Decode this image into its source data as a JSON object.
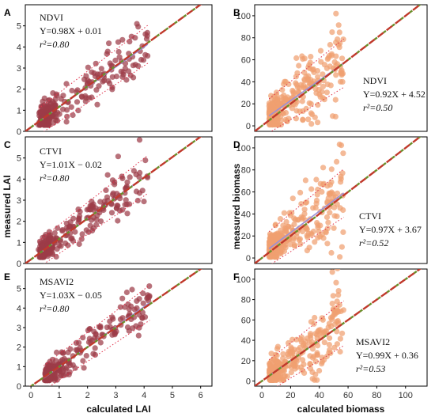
{
  "chart_data": [
    {
      "panel": "A",
      "type": "scatter",
      "annotation": {
        "index": "NDVI",
        "equation": "Y=0.98X + 0.01",
        "r2": "r²=0.80"
      },
      "xlim": [
        0,
        6.4
      ],
      "ylim": [
        0,
        6.0
      ],
      "xticks": [],
      "yticks": [
        "0",
        "1",
        "2",
        "3",
        "4",
        "5"
      ],
      "fit": {
        "slope": 0.98,
        "intercept": 0.01
      },
      "scatter_model": {
        "n": 260,
        "x_range": [
          0.45,
          4.2
        ],
        "seed": 11
      }
    },
    {
      "panel": "B",
      "type": "scatter",
      "annotation": {
        "index": "NDVI",
        "equation": "Y=0.92X + 4.52",
        "r2": "r²=0.50"
      },
      "xlim": [
        -5,
        115
      ],
      "ylim": [
        -5,
        110
      ],
      "xticks": [],
      "yticks": [
        "0",
        "20",
        "40",
        "60",
        "80",
        "100"
      ],
      "fit": {
        "slope": 0.92,
        "intercept": 4.52
      },
      "scatter_model": {
        "n": 300,
        "x_range": [
          5,
          57
        ],
        "seed": 23
      }
    },
    {
      "panel": "C",
      "type": "scatter",
      "annotation": {
        "index": "CTVI",
        "equation": "Y=1.01X − 0.02",
        "r2": "r²=0.80"
      },
      "xlim": [
        0,
        6.4
      ],
      "ylim": [
        0,
        6.0
      ],
      "xticks": [],
      "yticks": [
        "0",
        "1",
        "2",
        "3",
        "4",
        "5"
      ],
      "ylabel": "measured LAI",
      "fit": {
        "slope": 1.01,
        "intercept": -0.02
      },
      "scatter_model": {
        "n": 260,
        "x_range": [
          0.45,
          4.2
        ],
        "seed": 37
      }
    },
    {
      "panel": "D",
      "type": "scatter",
      "annotation": {
        "index": "CTVI",
        "equation": "Y=0.97X + 3.67",
        "r2": "r²=0.52"
      },
      "xlim": [
        -5,
        115
      ],
      "ylim": [
        -5,
        110
      ],
      "xticks": [],
      "yticks": [
        "0",
        "20",
        "40",
        "60",
        "80",
        "100"
      ],
      "ylabel": "measured biomass",
      "fit": {
        "slope": 0.97,
        "intercept": 3.67
      },
      "scatter_model": {
        "n": 300,
        "x_range": [
          5,
          57
        ],
        "seed": 41
      }
    },
    {
      "panel": "E",
      "type": "scatter",
      "annotation": {
        "index": "MSAVI2",
        "equation": "Y=1.03X − 0.05",
        "r2": "r²=0.80"
      },
      "xlim": [
        -0.2,
        6.4
      ],
      "ylim": [
        0,
        6.0
      ],
      "xticks": [
        "0",
        "1",
        "2",
        "3",
        "4",
        "5",
        "6"
      ],
      "yticks": [
        "0",
        "1",
        "2",
        "3",
        "4",
        "5"
      ],
      "xlabel": "calculated LAI",
      "fit": {
        "slope": 1.03,
        "intercept": -0.05
      },
      "scatter_model": {
        "n": 260,
        "x_range": [
          0.45,
          4.2
        ],
        "seed": 53
      }
    },
    {
      "panel": "F",
      "type": "scatter",
      "annotation": {
        "index": "MSAVI2",
        "equation": "Y=0.99X + 0.36",
        "r2": "r²=0.53"
      },
      "xlim": [
        -5,
        115
      ],
      "ylim": [
        -5,
        110
      ],
      "xticks": [
        "0",
        "20",
        "40",
        "60",
        "80",
        "100"
      ],
      "yticks": [
        "0",
        "20",
        "40",
        "60",
        "80",
        "100"
      ],
      "xlabel": "calculated biomass",
      "fit": {
        "slope": 0.99,
        "intercept": 0.36
      },
      "scatter_model": {
        "n": 300,
        "x_range": [
          5,
          57
        ],
        "seed": 67
      }
    }
  ],
  "colors": {
    "lai_points": "#9c3b48",
    "biomass_points": "#f0a070",
    "one_to_one_line": "#c0392b",
    "one_to_one_dash": "#6a8f2a",
    "fit_line": "#9a8fd8",
    "interval_line": "#e0304a",
    "frame": "#000000"
  }
}
